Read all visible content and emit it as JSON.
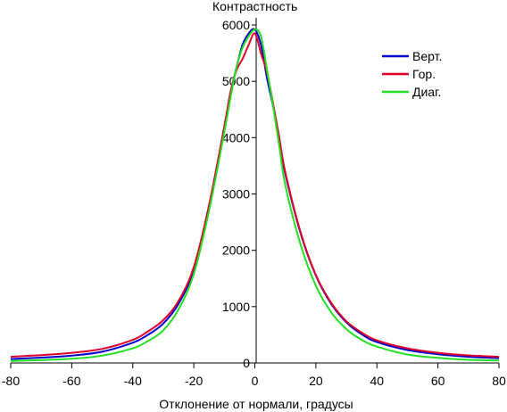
{
  "chart_data": {
    "type": "line",
    "title": "",
    "ylabel": "Контрастность",
    "xlabel": "Отклонение от нормали, градусы",
    "xlim": [
      -80,
      80
    ],
    "ylim": [
      0,
      6000
    ],
    "xticks": [
      -80,
      -60,
      -40,
      -20,
      0,
      20,
      40,
      60,
      80
    ],
    "yticks": [
      0,
      1000,
      2000,
      3000,
      4000,
      5000,
      6000
    ],
    "x_tick_labels": [
      "-80",
      "-60",
      "-40",
      "-20",
      "0",
      "20",
      "40",
      "60",
      "80"
    ],
    "y_tick_labels": [
      "0",
      "1000",
      "2000",
      "3000",
      "4000",
      "5000",
      "6000"
    ],
    "grid": false,
    "legend_position": "top-right",
    "x": [
      -80,
      -70,
      -60,
      -50,
      -40,
      -35,
      -30,
      -25,
      -20,
      -15,
      -10,
      -8,
      -6,
      -4,
      -2,
      0,
      2,
      4,
      6,
      8,
      10,
      15,
      20,
      25,
      30,
      35,
      40,
      50,
      60,
      70,
      80
    ],
    "series": [
      {
        "name": "Верт.",
        "color": "#0000d0",
        "values": [
          70,
          95,
          130,
          200,
          360,
          500,
          700,
          1050,
          1650,
          2750,
          4150,
          4750,
          5250,
          5650,
          5850,
          5920,
          5650,
          5050,
          4550,
          3950,
          3350,
          2300,
          1550,
          1050,
          720,
          510,
          370,
          230,
          155,
          110,
          85
        ]
      },
      {
        "name": "Гор.",
        "color": "#e0002a",
        "values": [
          110,
          140,
          180,
          250,
          410,
          560,
          760,
          1100,
          1700,
          2800,
          4200,
          4800,
          5200,
          5400,
          5650,
          5850,
          5500,
          5150,
          4600,
          4000,
          3380,
          2320,
          1560,
          1070,
          740,
          540,
          400,
          260,
          180,
          135,
          110
        ]
      },
      {
        "name": "Диаг.",
        "color": "#22e022",
        "values": [
          35,
          50,
          75,
          130,
          260,
          390,
          580,
          950,
          1580,
          2700,
          4100,
          4700,
          5250,
          5600,
          5800,
          5920,
          5800,
          5200,
          4550,
          3850,
          3150,
          2100,
          1370,
          900,
          600,
          410,
          290,
          150,
          90,
          55,
          45
        ]
      }
    ]
  }
}
